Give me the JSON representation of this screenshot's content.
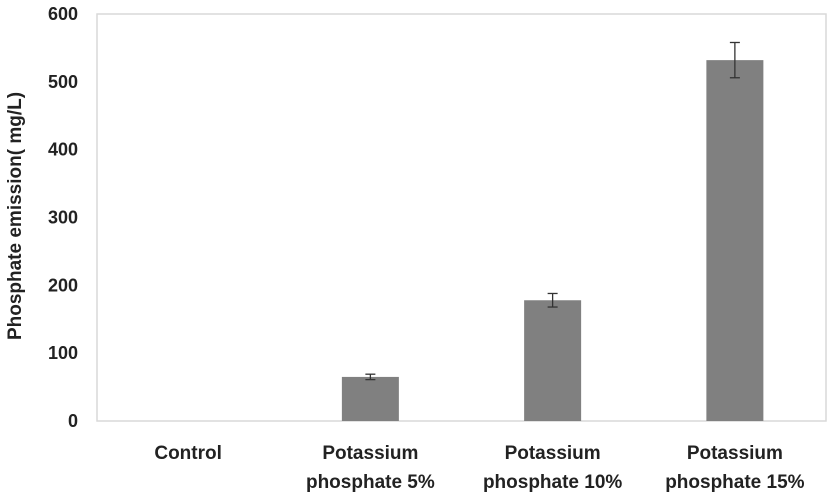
{
  "chart_data": {
    "type": "bar",
    "title": "",
    "xlabel": "",
    "ylabel": "Phosphate emission( mg/L)",
    "ylim": [
      0,
      600
    ],
    "yticks": [
      0,
      100,
      200,
      300,
      400,
      500,
      600
    ],
    "categories": [
      [
        "Control"
      ],
      [
        "Potassium",
        "phosphate 5%"
      ],
      [
        "Potassium",
        "phosphate 10%"
      ],
      [
        "Potassium",
        "phosphate 15%"
      ]
    ],
    "values": [
      0,
      65,
      178,
      532
    ],
    "errors": [
      0,
      4,
      10,
      26
    ],
    "grid": false,
    "legend": "none",
    "bar_color": "#808080",
    "axis_color": "#d9d9d9",
    "error_bar_color": "#333333"
  }
}
